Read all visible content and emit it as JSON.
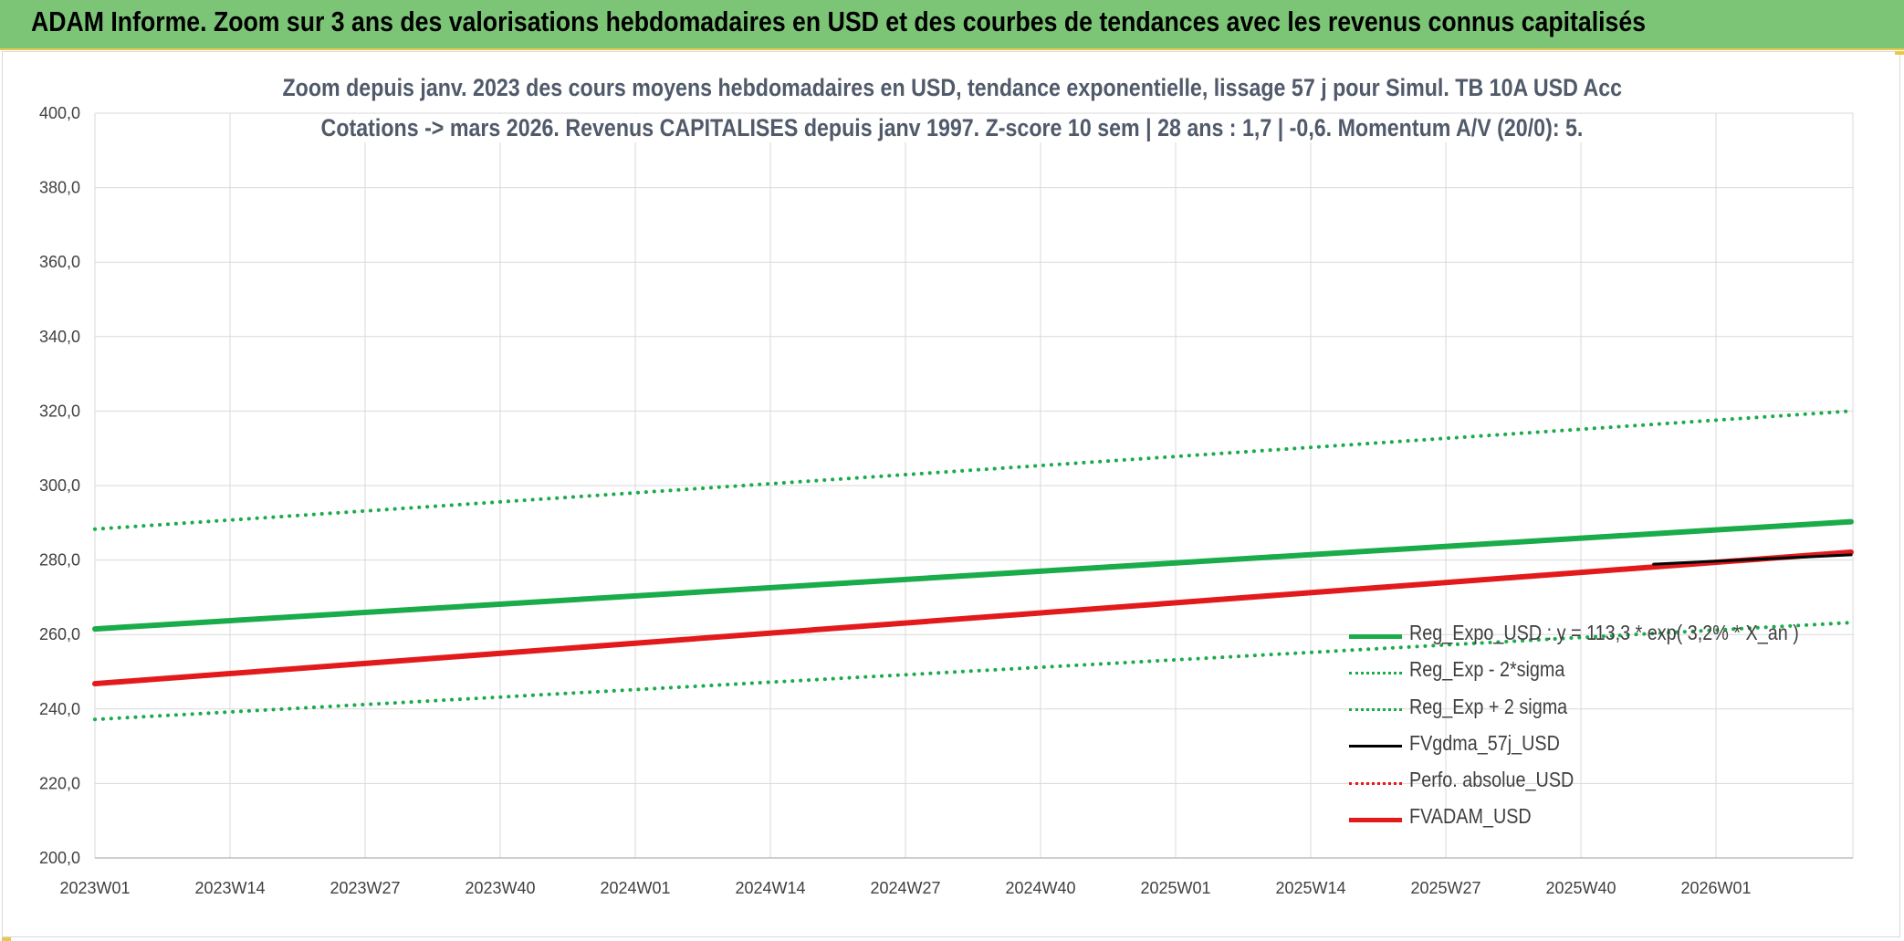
{
  "banner": {
    "title": "ADAM Informe. Zoom sur 3 ans des valorisations hebdomadaires en USD et des courbes de tendances avec les revenus connus capitalisés"
  },
  "chart_data": {
    "type": "line",
    "title_line1": "Zoom depuis janv. 2023 des cours moyens hebdomadaires en USD, tendance exponentielle, lissage 57 j pour Simul. TB 10A USD Acc",
    "title_line2": "Cotations -> mars 2026. Revenus CAPITALISES depuis janv 1997. Z-score 10 sem | 28 ans : 1,7 | -0,6. Momentum A/V (20/0): 5.",
    "ylim": [
      200,
      400
    ],
    "y_ticks": [
      "200,0",
      "220,0",
      "240,0",
      "260,0",
      "280,0",
      "300,0",
      "320,0",
      "340,0",
      "360,0",
      "380,0",
      "400,0"
    ],
    "x_ticks": [
      "2023W01",
      "2023W14",
      "2023W27",
      "2023W40",
      "2024W01",
      "2024W14",
      "2024W27",
      "2024W40",
      "2025W01",
      "2025W14",
      "2025W27",
      "2025W40",
      "2026W01"
    ],
    "x_range_weeks": [
      0,
      169
    ],
    "grid": true,
    "legend_position": "bottom-right",
    "series": [
      {
        "name": "Reg_Expo_USD : y = 113,3 * exp( 3,2% * X_an )",
        "color": "#1aab4a",
        "style": "solid",
        "width": 6,
        "x": [
          0,
          169
        ],
        "y": [
          261.5,
          290.3
        ]
      },
      {
        "name": "Reg_Exp - 2*sigma",
        "color": "#1aab4a",
        "style": "dotted",
        "width": 4,
        "x": [
          0,
          169
        ],
        "y": [
          237.2,
          263.2
        ]
      },
      {
        "name": "Reg_Exp + 2 sigma",
        "color": "#1aab4a",
        "style": "dotted",
        "width": 4,
        "x": [
          0,
          169
        ],
        "y": [
          288.3,
          320.0
        ]
      },
      {
        "name": "FVgdma_57j_USD",
        "color": "#000000",
        "style": "solid",
        "width": 3,
        "x": [
          150,
          169
        ],
        "y": [
          278.9,
          281.4
        ]
      },
      {
        "name": "Perfo. absolue_USD",
        "color": "#e31a1c",
        "style": "dotted",
        "width": 3,
        "x": [],
        "y": []
      },
      {
        "name": "FVADAM_USD",
        "color": "#e31a1c",
        "style": "solid",
        "width": 6,
        "x": [
          0,
          169
        ],
        "y": [
          246.8,
          282.1
        ]
      }
    ]
  }
}
